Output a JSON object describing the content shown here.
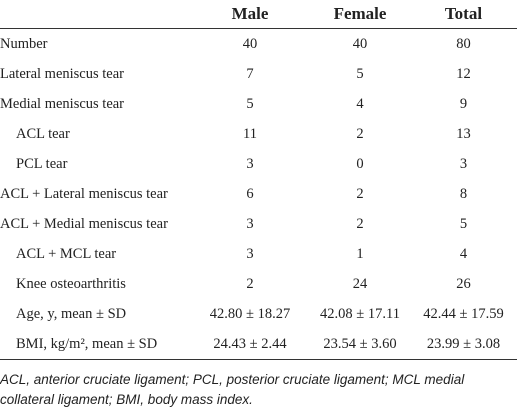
{
  "table": {
    "columns": [
      "",
      "Male",
      "Female",
      "Total"
    ],
    "rows": [
      {
        "label": "Number",
        "indent": false,
        "cells": [
          "40",
          "40",
          "80"
        ]
      },
      {
        "label": "Lateral meniscus tear",
        "indent": false,
        "cells": [
          "7",
          "5",
          "12"
        ]
      },
      {
        "label": "Medial meniscus tear",
        "indent": false,
        "cells": [
          "5",
          "4",
          "9"
        ]
      },
      {
        "label": "ACL tear",
        "indent": true,
        "cells": [
          "11",
          "2",
          "13"
        ]
      },
      {
        "label": "PCL tear",
        "indent": true,
        "cells": [
          "3",
          "0",
          "3"
        ]
      },
      {
        "label": "ACL + Lateral meniscus tear",
        "indent": false,
        "cells": [
          "6",
          "2",
          "8"
        ]
      },
      {
        "label": "ACL + Medial meniscus tear",
        "indent": false,
        "cells": [
          "3",
          "2",
          "5"
        ]
      },
      {
        "label": "ACL + MCL tear",
        "indent": true,
        "cells": [
          "3",
          "1",
          "4"
        ]
      },
      {
        "label": "Knee osteoarthritis",
        "indent": true,
        "cells": [
          "2",
          "24",
          "26"
        ]
      },
      {
        "label": "Age, y, mean ± SD",
        "indent": true,
        "cells": [
          "42.80 ± 18.27",
          "42.08 ± 17.11",
          "42.44 ± 17.59"
        ]
      },
      {
        "label": "BMI, kg/m², mean ± SD",
        "indent": true,
        "cells": [
          "24.43 ± 2.44",
          "23.54 ± 3.60",
          "23.99 ± 3.08"
        ]
      }
    ]
  },
  "footnote": "ACL, anterior cruciate ligament; PCL, posterior cruciate ligament; MCL medial collateral ligament; BMI, body mass index."
}
